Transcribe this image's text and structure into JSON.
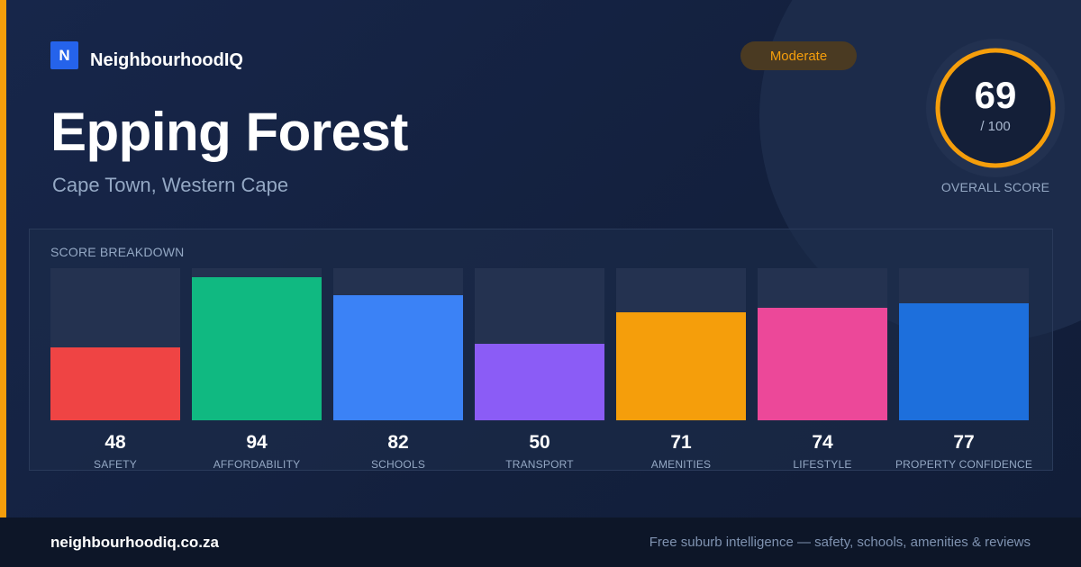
{
  "brand": {
    "logo_letter": "N",
    "name": "NeighbourhoodIQ"
  },
  "suburb": {
    "name": "Epping Forest",
    "location": "Cape Town, Western Cape"
  },
  "rating_badge": {
    "label": "Moderate",
    "color": "#f59e0b"
  },
  "overall": {
    "score": "69",
    "max": "/ 100",
    "label": "OVERALL SCORE",
    "fraction": 0.69
  },
  "breakdown": {
    "title": "SCORE BREAKDOWN"
  },
  "chart_data": {
    "type": "bar",
    "title": "SCORE BREAKDOWN",
    "ylim": [
      0,
      100
    ],
    "categories": [
      "SAFETY",
      "AFFORDABILITY",
      "SCHOOLS",
      "TRANSPORT",
      "AMENITIES",
      "LIFESTYLE",
      "PROPERTY CONFIDENCE"
    ],
    "values": [
      48,
      94,
      82,
      50,
      71,
      74,
      77
    ],
    "colors": [
      "#ef4444",
      "#10b981",
      "#3b82f6",
      "#8b5cf6",
      "#f59e0b",
      "#ec4899",
      "#1d6fdc"
    ]
  },
  "footer": {
    "url": "neighbourhoodiq.co.za",
    "tagline": "Free suburb intelligence — safety, schools, amenities & reviews"
  }
}
